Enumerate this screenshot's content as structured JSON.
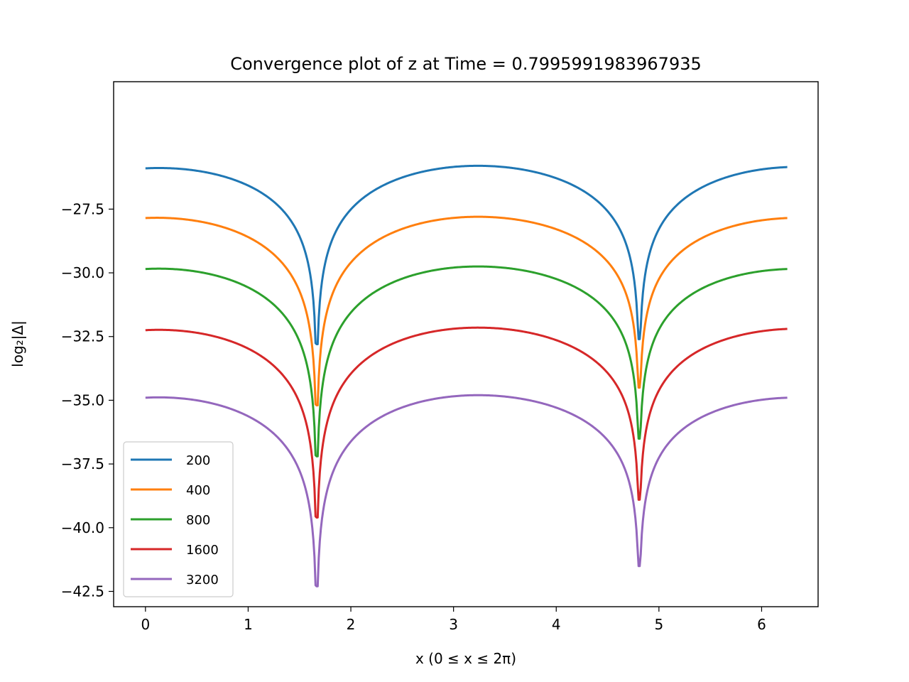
{
  "chart_data": {
    "type": "line",
    "title": "Convergence plot of z at Time = 0.7995991983967935",
    "xlabel": "x (0 ≤ x ≤ 2π)",
    "ylabel": "log₂|Δ|",
    "xlim": [
      -0.31,
      6.55
    ],
    "ylim": [
      -43.1,
      -22.5
    ],
    "xticks": [
      0,
      1,
      2,
      3,
      4,
      5,
      6
    ],
    "xtick_labels": [
      "0",
      "1",
      "2",
      "3",
      "4",
      "5",
      "6"
    ],
    "yticks": [
      -27.5,
      -30.0,
      -32.5,
      -35.0,
      -37.5,
      -40.0,
      -42.5
    ],
    "ytick_labels": [
      "−27.5",
      "−30.0",
      "−32.5",
      "−35.0",
      "−37.5",
      "−40.0",
      "−42.5"
    ],
    "grid": false,
    "legend_position": "lower-left",
    "x_range": [
      0,
      6.25
    ],
    "dip_positions": [
      1.667,
      4.71
    ],
    "series": [
      {
        "name": "200",
        "color": "#1f77b4",
        "max": -25.8,
        "dip1_min": -32.8,
        "dip2_min": -32.6,
        "start": -25.9,
        "end": -25.85
      },
      {
        "name": "400",
        "color": "#ff7f0e",
        "max": -27.8,
        "dip1_min": -35.2,
        "dip2_min": -34.5,
        "start": -27.85,
        "end": -27.85
      },
      {
        "name": "800",
        "color": "#2ca02c",
        "max": -29.75,
        "dip1_min": -37.2,
        "dip2_min": -36.5,
        "start": -29.85,
        "end": -29.85
      },
      {
        "name": "1600",
        "color": "#d62728",
        "max": -32.15,
        "dip1_min": -39.6,
        "dip2_min": -38.9,
        "start": -32.25,
        "end": -32.2
      },
      {
        "name": "3200",
        "color": "#9467bd",
        "max": -34.8,
        "dip1_min": -42.3,
        "dip2_min": -41.5,
        "start": -34.9,
        "end": -34.9
      }
    ]
  }
}
